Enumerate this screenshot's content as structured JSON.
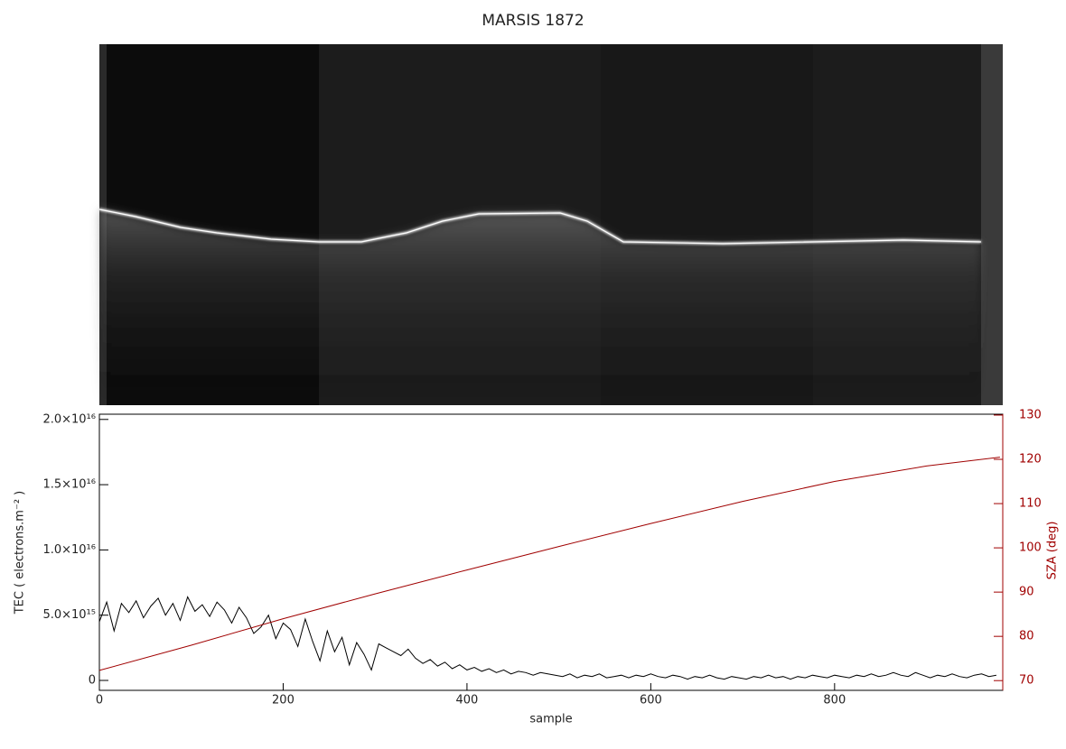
{
  "chart_data": {
    "type": "line",
    "title": "MARSIS 1872",
    "xlabel": "sample",
    "ylabel": "TEC ( electrons.m⁻² )",
    "y2label": "SZA (deg)",
    "xlim": [
      0,
      983
    ],
    "xticks": [
      0,
      200,
      400,
      600,
      800
    ],
    "ylim": [
      -760000000000000.0,
      2.04e+16
    ],
    "yticks": [
      0,
      {
        "value": 5000000000000000.0,
        "label": "5.0×10¹⁵"
      },
      {
        "value": 1e+16,
        "label": "1.0×10¹⁶"
      },
      {
        "value": 1.5e+16,
        "label": "1.5×10¹⁶"
      },
      {
        "value": 2e+16,
        "label": "2.0×10¹⁶"
      }
    ],
    "y2lim": [
      67.8,
      130.2
    ],
    "y2ticks": [
      70,
      80,
      90,
      100,
      110,
      120,
      130
    ],
    "series": [
      {
        "color": "#000000",
        "x": [
          0,
          8,
          16,
          24,
          32,
          40,
          48,
          56,
          64,
          72,
          80,
          88,
          96,
          104,
          112,
          120,
          128,
          136,
          144,
          152,
          160,
          168,
          176,
          184,
          192,
          200,
          208,
          216,
          224,
          232,
          240,
          248,
          256,
          264,
          272,
          280,
          288,
          296,
          304,
          312,
          320,
          328,
          336,
          344,
          352,
          360,
          368,
          376,
          384,
          392,
          400,
          408,
          416,
          424,
          432,
          440,
          448,
          456,
          464,
          472,
          480,
          488,
          496,
          504,
          512,
          520,
          528,
          536,
          544,
          552,
          560,
          568,
          576,
          584,
          592,
          600,
          608,
          616,
          624,
          632,
          640,
          648,
          656,
          664,
          672,
          680,
          688,
          696,
          704,
          712,
          720,
          728,
          736,
          744,
          752,
          760,
          768,
          776,
          784,
          792,
          800,
          808,
          816,
          824,
          832,
          840,
          848,
          856,
          864,
          872,
          880,
          888,
          896,
          904,
          912,
          920,
          928,
          936,
          944,
          952,
          960,
          968,
          976
        ],
        "values": [
          4500000000000000.0,
          6000000000000000.0,
          3800000000000000.0,
          5900000000000000.0,
          5200000000000000.0,
          6100000000000000.0,
          4800000000000000.0,
          5700000000000000.0,
          6300000000000000.0,
          5000000000000000.0,
          5900000000000000.0,
          4600000000000000.0,
          6400000000000000.0,
          5300000000000000.0,
          5800000000000000.0,
          4900000000000000.0,
          6000000000000000.0,
          5400000000000000.0,
          4400000000000000.0,
          5600000000000000.0,
          4800000000000000.0,
          3600000000000000.0,
          4100000000000000.0,
          5000000000000000.0,
          3200000000000000.0,
          4400000000000000.0,
          3900000000000000.0,
          2600000000000000.0,
          4700000000000000.0,
          3000000000000000.0,
          1500000000000000.0,
          3800000000000000.0,
          2200000000000000.0,
          3300000000000000.0,
          1200000000000000.0,
          2900000000000000.0,
          2000000000000000.0,
          800000000000000.0,
          2800000000000000.0,
          2500000000000000.0,
          2200000000000000.0,
          1900000000000000.0,
          2400000000000000.0,
          1700000000000000.0,
          1300000000000000.0,
          1600000000000000.0,
          1100000000000000.0,
          1400000000000000.0,
          900000000000000.0,
          1200000000000000.0,
          800000000000000.0,
          1000000000000000.0,
          700000000000000.0,
          900000000000000.0,
          600000000000000.0,
          800000000000000.0,
          500000000000000.0,
          700000000000000.0,
          600000000000000.0,
          400000000000000.0,
          600000000000000.0,
          500000000000000.0,
          400000000000000.0,
          300000000000000.0,
          500000000000000.0,
          200000000000000.0,
          400000000000000.0,
          300000000000000.0,
          500000000000000.0,
          200000000000000.0,
          300000000000000.0,
          400000000000000.0,
          200000000000000.0,
          400000000000000.0,
          300000000000000.0,
          500000000000000.0,
          300000000000000.0,
          200000000000000.0,
          400000000000000.0,
          300000000000000.0,
          100000000000000.0,
          300000000000000.0,
          200000000000000.0,
          400000000000000.0,
          200000000000000.0,
          100000000000000.0,
          300000000000000.0,
          200000000000000.0,
          100000000000000.0,
          300000000000000.0,
          200000000000000.0,
          400000000000000.0,
          200000000000000.0,
          300000000000000.0,
          100000000000000.0,
          300000000000000.0,
          200000000000000.0,
          400000000000000.0,
          300000000000000.0,
          200000000000000.0,
          400000000000000.0,
          300000000000000.0,
          200000000000000.0,
          400000000000000.0,
          300000000000000.0,
          500000000000000.0,
          300000000000000.0,
          400000000000000.0,
          600000000000000.0,
          400000000000000.0,
          300000000000000.0,
          600000000000000.0,
          400000000000000.0,
          200000000000000.0,
          400000000000000.0,
          300000000000000.0,
          500000000000000.0,
          300000000000000.0,
          200000000000000.0,
          400000000000000.0,
          500000000000000.0,
          300000000000000.0,
          400000000000000.0
        ]
      },
      {
        "color": "#a00000",
        "axis": "y2",
        "x": [
          0,
          100,
          200,
          300,
          400,
          500,
          600,
          700,
          800,
          900,
          980
        ],
        "values": [
          72.3,
          78,
          84,
          89.6,
          95,
          100.3,
          105.5,
          110.5,
          115,
          118.5,
          120.5
        ]
      }
    ]
  }
}
